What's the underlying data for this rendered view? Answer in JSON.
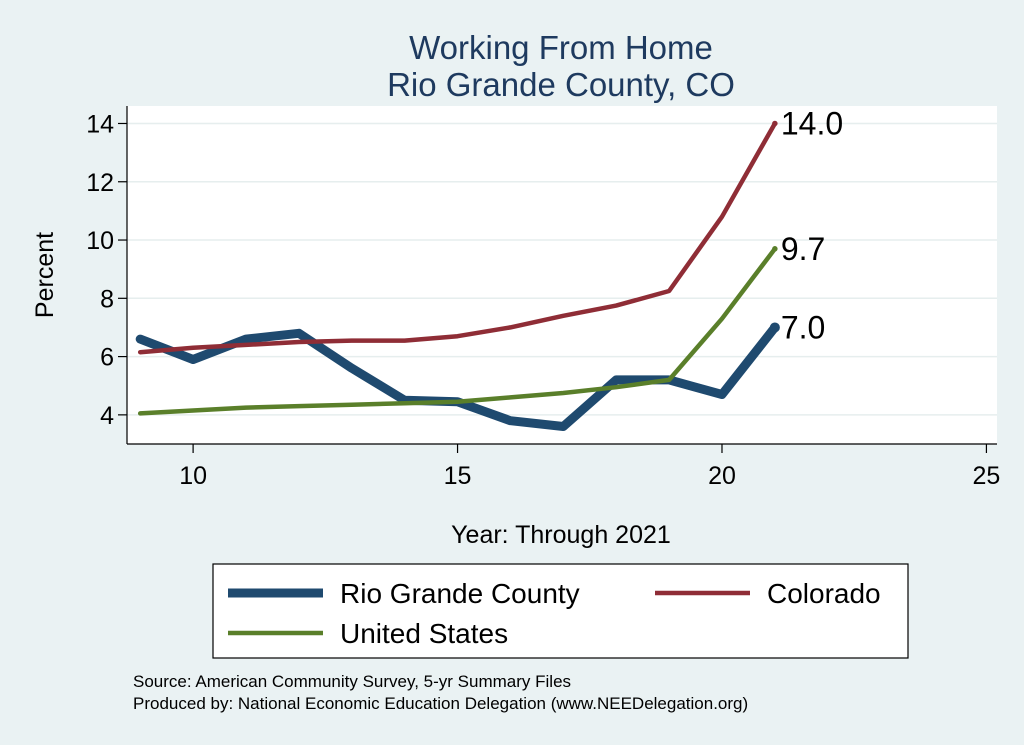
{
  "chart_data": {
    "type": "line",
    "title": [
      "Working From Home",
      "Rio Grande County, CO"
    ],
    "xlabel": "Year: Through 2021",
    "ylabel": "Percent",
    "xlim": [
      8.75,
      25.2
    ],
    "ylim": [
      3,
      14.6
    ],
    "xticks": [
      10,
      15,
      20,
      25
    ],
    "yticks": [
      4,
      6,
      8,
      10,
      12,
      14
    ],
    "grid": true,
    "legend_position": "bottom",
    "series": [
      {
        "name": "Rio Grande County",
        "color": "#1f4a6f",
        "width": 9,
        "x": [
          9,
          10,
          11,
          12,
          13,
          14,
          15,
          16,
          17,
          18,
          19,
          20,
          21
        ],
        "y": [
          6.6,
          5.9,
          6.6,
          6.8,
          5.6,
          4.5,
          4.45,
          3.8,
          3.6,
          5.2,
          5.2,
          4.7,
          7.0
        ],
        "end_label": "7.0"
      },
      {
        "name": "Colorado",
        "color": "#8f2d36",
        "width": 4.5,
        "x": [
          9,
          10,
          11,
          12,
          13,
          14,
          15,
          16,
          17,
          18,
          19,
          20,
          21
        ],
        "y": [
          6.15,
          6.3,
          6.4,
          6.5,
          6.55,
          6.55,
          6.7,
          7.0,
          7.4,
          7.75,
          8.25,
          10.8,
          14.0
        ],
        "end_label": "14.0"
      },
      {
        "name": "United States",
        "color": "#5a7f2a",
        "width": 4.5,
        "x": [
          9,
          10,
          11,
          12,
          13,
          14,
          15,
          16,
          17,
          18,
          19,
          20,
          21
        ],
        "y": [
          4.05,
          4.15,
          4.25,
          4.3,
          4.35,
          4.4,
          4.45,
          4.6,
          4.75,
          4.95,
          5.2,
          7.3,
          9.7
        ],
        "end_label": "9.7"
      }
    ]
  },
  "notes": [
    "Source: American Community Survey, 5-yr Summary Files",
    "Produced by: National Economic Education Delegation (www.NEEDelegation.org)"
  ]
}
